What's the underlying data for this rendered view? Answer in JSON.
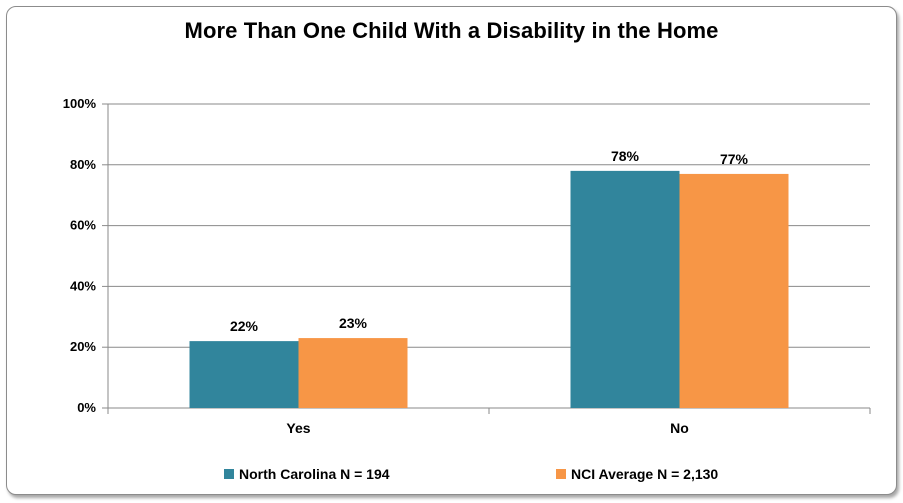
{
  "chart_data": {
    "type": "bar",
    "title": "More Than One Child With a Disability in the Home",
    "categories": [
      "Yes",
      "No"
    ],
    "series": [
      {
        "name": "North Carolina N = 194",
        "values": [
          22,
          78
        ],
        "labels": [
          "22%",
          "78%"
        ],
        "color": "#31859c"
      },
      {
        "name": "NCI Average N = 2,130",
        "values": [
          23,
          77
        ],
        "labels": [
          "23%",
          "77%"
        ],
        "color": "#f79646"
      }
    ],
    "ylim": [
      0,
      100
    ],
    "yticks": [
      "0%",
      "20%",
      "40%",
      "60%",
      "80%",
      "100%"
    ],
    "grid": true,
    "legend_position": "bottom"
  }
}
